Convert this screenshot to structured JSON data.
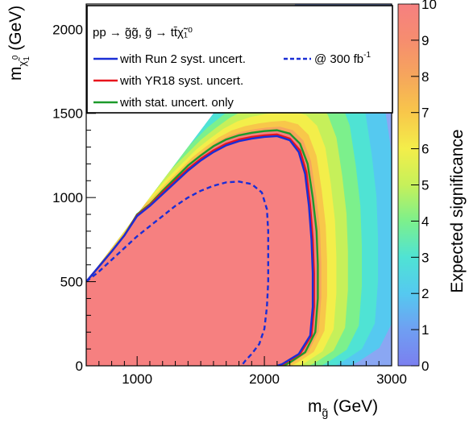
{
  "chart_data": {
    "type": "heatmap",
    "title": "",
    "process_label": "pp → g̃g̃, g̃ → tt̄χ̃₁⁰",
    "xlabel": "m_g̃ (GeV)",
    "xlabel_parts": {
      "main": "m",
      "sub": "g̃",
      "unit": " (GeV)"
    },
    "ylabel": "m_χ̃₁⁰ (GeV)",
    "ylabel_parts": {
      "main": "m",
      "sub": "χ̃",
      "subsub": "1",
      "sup": "0",
      "unit": " (GeV)"
    },
    "zlabel": "Expected significance",
    "xlim": [
      600,
      3000
    ],
    "ylim": [
      0,
      2150
    ],
    "zlim": [
      0,
      10
    ],
    "x_ticks": [
      1000,
      2000,
      3000
    ],
    "y_ticks": [
      0,
      500,
      1000,
      1500,
      2000
    ],
    "z_ticks": [
      0,
      1,
      2,
      3,
      4,
      5,
      6,
      7,
      8,
      9,
      10
    ],
    "diagonal_boundary": [
      [
        600,
        500
      ],
      [
        1000,
        900
      ],
      [
        1400,
        1300
      ],
      [
        2000,
        1900
      ]
    ],
    "contours": [
      {
        "name": "with stat. uncert. only",
        "color": "#1c9a2a",
        "dash": "solid",
        "points": [
          [
            600,
            500
          ],
          [
            700,
            590
          ],
          [
            800,
            680
          ],
          [
            900,
            775
          ],
          [
            1000,
            900
          ],
          [
            1100,
            960
          ],
          [
            1200,
            1040
          ],
          [
            1300,
            1115
          ],
          [
            1400,
            1190
          ],
          [
            1500,
            1250
          ],
          [
            1600,
            1305
          ],
          [
            1700,
            1345
          ],
          [
            1800,
            1370
          ],
          [
            1900,
            1385
          ],
          [
            2000,
            1395
          ],
          [
            2100,
            1400
          ],
          [
            2200,
            1380
          ],
          [
            2280,
            1320
          ],
          [
            2340,
            1200
          ],
          [
            2380,
            1000
          ],
          [
            2410,
            800
          ],
          [
            2420,
            600
          ],
          [
            2420,
            400
          ],
          [
            2400,
            200
          ],
          [
            2320,
            80
          ],
          [
            2200,
            20
          ],
          [
            2150,
            0
          ]
        ]
      },
      {
        "name": "with YR18 syst. uncert.",
        "color": "#e8141c",
        "dash": "solid",
        "points": [
          [
            600,
            500
          ],
          [
            700,
            590
          ],
          [
            800,
            680
          ],
          [
            900,
            775
          ],
          [
            1000,
            895
          ],
          [
            1100,
            955
          ],
          [
            1200,
            1030
          ],
          [
            1300,
            1100
          ],
          [
            1400,
            1170
          ],
          [
            1500,
            1230
          ],
          [
            1600,
            1280
          ],
          [
            1700,
            1320
          ],
          [
            1800,
            1345
          ],
          [
            1900,
            1360
          ],
          [
            2000,
            1370
          ],
          [
            2100,
            1375
          ],
          [
            2200,
            1350
          ],
          [
            2280,
            1280
          ],
          [
            2330,
            1150
          ],
          [
            2360,
            950
          ],
          [
            2380,
            750
          ],
          [
            2390,
            550
          ],
          [
            2390,
            350
          ],
          [
            2370,
            180
          ],
          [
            2280,
            70
          ],
          [
            2150,
            10
          ],
          [
            2120,
            0
          ]
        ]
      },
      {
        "name": "with Run 2 syst. uncert.",
        "color": "#1a2ed6",
        "dash": "solid",
        "points": [
          [
            600,
            500
          ],
          [
            700,
            590
          ],
          [
            800,
            680
          ],
          [
            900,
            775
          ],
          [
            1000,
            890
          ],
          [
            1100,
            950
          ],
          [
            1200,
            1020
          ],
          [
            1300,
            1090
          ],
          [
            1400,
            1160
          ],
          [
            1500,
            1220
          ],
          [
            1600,
            1270
          ],
          [
            1700,
            1310
          ],
          [
            1800,
            1335
          ],
          [
            1900,
            1350
          ],
          [
            2000,
            1360
          ],
          [
            2100,
            1365
          ],
          [
            2200,
            1340
          ],
          [
            2270,
            1270
          ],
          [
            2320,
            1140
          ],
          [
            2350,
            950
          ],
          [
            2370,
            750
          ],
          [
            2380,
            550
          ],
          [
            2380,
            350
          ],
          [
            2360,
            180
          ],
          [
            2270,
            70
          ],
          [
            2140,
            10
          ],
          [
            2100,
            0
          ]
        ]
      },
      {
        "name": "@ 300 fb⁻¹",
        "color": "#1a2ed6",
        "dash": "dashed",
        "points": [
          [
            600,
            500
          ],
          [
            700,
            560
          ],
          [
            800,
            630
          ],
          [
            900,
            700
          ],
          [
            1000,
            770
          ],
          [
            1100,
            830
          ],
          [
            1200,
            890
          ],
          [
            1300,
            950
          ],
          [
            1400,
            1000
          ],
          [
            1500,
            1040
          ],
          [
            1600,
            1070
          ],
          [
            1700,
            1090
          ],
          [
            1800,
            1095
          ],
          [
            1900,
            1080
          ],
          [
            1980,
            1030
          ],
          [
            2020,
            930
          ],
          [
            2030,
            800
          ],
          [
            2030,
            650
          ],
          [
            2030,
            500
          ],
          [
            2020,
            350
          ],
          [
            2000,
            220
          ],
          [
            1960,
            130
          ],
          [
            1900,
            70
          ],
          [
            1850,
            30
          ],
          [
            1820,
            0
          ]
        ]
      }
    ],
    "legend": {
      "header": "pp → g̃g̃, g̃ → tt̄χ̃₁⁰",
      "placement": "top-left",
      "entries": [
        {
          "label": "with Run 2 syst. uncert.",
          "color": "#1a2ed6",
          "dash": "solid"
        },
        {
          "label": "@ 300 fb",
          "label_sup": "-1",
          "color": "#1a2ed6",
          "dash": "dashed"
        },
        {
          "label": "with YR18 syst. uncert.",
          "color": "#e8141c",
          "dash": "solid"
        },
        {
          "label": "with stat. uncert. only",
          "color": "#1c9a2a",
          "dash": "solid"
        }
      ]
    },
    "colorscale": [
      "#7b7ff0",
      "#6f9ff2",
      "#55c9f0",
      "#4fe3d4",
      "#7cf08c",
      "#c6f05a",
      "#f3ee4a",
      "#f8c74a",
      "#f6a65c",
      "#f68d6f",
      "#f68080"
    ]
  }
}
